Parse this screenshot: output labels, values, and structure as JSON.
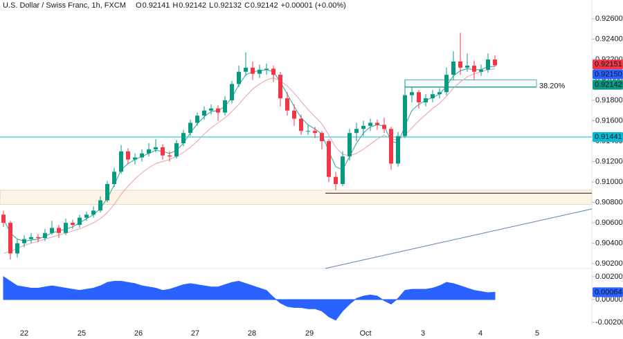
{
  "chart_data": {
    "type": "candlestick",
    "title": "U.S. Dollar / Swiss Franc, 1h, FXCM",
    "ohlc": [
      {
        "label": "O",
        "value": 0.92141
      },
      {
        "label": "H",
        "value": 0.92142
      },
      {
        "label": "L",
        "value": 0.92132
      },
      {
        "label": "C",
        "value": 0.92142
      }
    ],
    "change": "+0.00001 (+0.00%)",
    "up_color": "#089981",
    "down_color": "#f23645",
    "candles": [
      [
        0.9068,
        0.9072,
        0.9056,
        0.906
      ],
      [
        0.906,
        0.9062,
        0.9024,
        0.903
      ],
      [
        0.903,
        0.9044,
        0.9026,
        0.904
      ],
      [
        0.904,
        0.9048,
        0.9036,
        0.9044
      ],
      [
        0.9044,
        0.905,
        0.904,
        0.9046
      ],
      [
        0.9046,
        0.9049,
        0.9041,
        0.9045
      ],
      [
        0.9045,
        0.9054,
        0.9042,
        0.905
      ],
      [
        0.905,
        0.9062,
        0.9048,
        0.9055
      ],
      [
        0.9055,
        0.9058,
        0.9045,
        0.905
      ],
      [
        0.905,
        0.9064,
        0.9048,
        0.906
      ],
      [
        0.906,
        0.9063,
        0.9054,
        0.9058
      ],
      [
        0.9058,
        0.9068,
        0.9055,
        0.9065
      ],
      [
        0.9065,
        0.9071,
        0.9062,
        0.9068
      ],
      [
        0.9068,
        0.9076,
        0.9065,
        0.9072
      ],
      [
        0.9072,
        0.9086,
        0.907,
        0.9082
      ],
      [
        0.9082,
        0.9101,
        0.908,
        0.9098
      ],
      [
        0.9098,
        0.9114,
        0.9095,
        0.911
      ],
      [
        0.911,
        0.9136,
        0.9108,
        0.913
      ],
      [
        0.913,
        0.9133,
        0.9118,
        0.9122
      ],
      [
        0.9122,
        0.9128,
        0.9117,
        0.9124
      ],
      [
        0.9124,
        0.9132,
        0.912,
        0.9128
      ],
      [
        0.9128,
        0.9138,
        0.9125,
        0.9132
      ],
      [
        0.9132,
        0.9142,
        0.9129,
        0.9134
      ],
      [
        0.9134,
        0.9137,
        0.9122,
        0.9126
      ],
      [
        0.9126,
        0.913,
        0.912,
        0.9125
      ],
      [
        0.9125,
        0.9141,
        0.9123,
        0.9138
      ],
      [
        0.9138,
        0.9151,
        0.9135,
        0.9148
      ],
      [
        0.9148,
        0.9161,
        0.9145,
        0.9158
      ],
      [
        0.9158,
        0.9168,
        0.9155,
        0.9165
      ],
      [
        0.9165,
        0.9174,
        0.9161,
        0.917
      ],
      [
        0.917,
        0.9176,
        0.9166,
        0.9172
      ],
      [
        0.9172,
        0.9175,
        0.916,
        0.9168
      ],
      [
        0.9168,
        0.9184,
        0.9165,
        0.918
      ],
      [
        0.918,
        0.9199,
        0.9177,
        0.9196
      ],
      [
        0.9196,
        0.9214,
        0.9193,
        0.9208
      ],
      [
        0.9208,
        0.9227,
        0.9204,
        0.9212
      ],
      [
        0.9212,
        0.9218,
        0.92,
        0.9206
      ],
      [
        0.9206,
        0.9215,
        0.9202,
        0.921
      ],
      [
        0.921,
        0.9216,
        0.9205,
        0.9211
      ],
      [
        0.9211,
        0.9214,
        0.9198,
        0.9205
      ],
      [
        0.9205,
        0.9208,
        0.9174,
        0.9182
      ],
      [
        0.9182,
        0.9188,
        0.9165,
        0.917
      ],
      [
        0.917,
        0.9176,
        0.9155,
        0.9162
      ],
      [
        0.9162,
        0.9166,
        0.9146,
        0.915
      ],
      [
        0.915,
        0.9156,
        0.9146,
        0.915
      ],
      [
        0.915,
        0.9154,
        0.9143,
        0.9148
      ],
      [
        0.9148,
        0.915,
        0.9132,
        0.914
      ],
      [
        0.914,
        0.9142,
        0.91,
        0.9105
      ],
      [
        0.9105,
        0.911,
        0.9092,
        0.9098
      ],
      [
        0.9098,
        0.913,
        0.9096,
        0.9125
      ],
      [
        0.9125,
        0.9152,
        0.9121,
        0.9148
      ],
      [
        0.9148,
        0.9158,
        0.914,
        0.9152
      ],
      [
        0.9152,
        0.916,
        0.9145,
        0.9155
      ],
      [
        0.9155,
        0.9162,
        0.915,
        0.9158
      ],
      [
        0.9158,
        0.9161,
        0.9151,
        0.9156
      ],
      [
        0.9156,
        0.9163,
        0.9148,
        0.9152
      ],
      [
        0.9152,
        0.9154,
        0.9112,
        0.9118
      ],
      [
        0.9118,
        0.9149,
        0.9115,
        0.9145
      ],
      [
        0.9145,
        0.92,
        0.9143,
        0.9185
      ],
      [
        0.9185,
        0.9193,
        0.9178,
        0.9188
      ],
      [
        0.9188,
        0.919,
        0.9172,
        0.9178
      ],
      [
        0.9178,
        0.9186,
        0.9174,
        0.9182
      ],
      [
        0.9182,
        0.919,
        0.9178,
        0.9186
      ],
      [
        0.9186,
        0.9192,
        0.9182,
        0.9188
      ],
      [
        0.9188,
        0.9212,
        0.9185,
        0.9205
      ],
      [
        0.9205,
        0.9228,
        0.92,
        0.9218
      ],
      [
        0.9218,
        0.9246,
        0.9205,
        0.9212
      ],
      [
        0.9212,
        0.9226,
        0.9208,
        0.9214
      ],
      [
        0.9214,
        0.9219,
        0.92,
        0.9208
      ],
      [
        0.9208,
        0.9215,
        0.9204,
        0.921
      ],
      [
        0.921,
        0.9226,
        0.9207,
        0.922
      ],
      [
        0.922,
        0.9224,
        0.92132,
        0.92142
      ]
    ],
    "overlays": [
      {
        "color": "#26a69a",
        "values": [
          0.9064,
          0.905,
          0.9044,
          0.9042,
          0.9043,
          0.9044,
          0.9047,
          0.905,
          0.9052,
          0.9054,
          0.9056,
          0.906,
          0.9064,
          0.9068,
          0.9074,
          0.9084,
          0.9097,
          0.9112,
          0.9118,
          0.9122,
          0.9125,
          0.9128,
          0.9131,
          0.913,
          0.9128,
          0.9131,
          0.9138,
          0.9148,
          0.9157,
          0.9164,
          0.9169,
          0.917,
          0.9174,
          0.9183,
          0.9195,
          0.9205,
          0.9208,
          0.9209,
          0.921,
          0.9208,
          0.9198,
          0.9186,
          0.9174,
          0.9163,
          0.9156,
          0.9152,
          0.9147,
          0.913,
          0.9115,
          0.9112,
          0.9125,
          0.9138,
          0.9148,
          0.9154,
          0.9156,
          0.9155,
          0.914,
          0.9138,
          0.9155,
          0.917,
          0.9176,
          0.918,
          0.9183,
          0.9186,
          0.9194,
          0.9204,
          0.9209,
          0.9211,
          0.921,
          0.921,
          0.9213,
          0.9213
        ]
      },
      {
        "color": "#e8a0a8",
        "values": [
          0.903,
          0.9032,
          0.9035,
          0.9038,
          0.904,
          0.9042,
          0.9044,
          0.9046,
          0.9048,
          0.905,
          0.9052,
          0.9054,
          0.9057,
          0.906,
          0.9064,
          0.907,
          0.9078,
          0.9088,
          0.9096,
          0.9103,
          0.9109,
          0.9114,
          0.9118,
          0.912,
          0.9122,
          0.9125,
          0.9129,
          0.9134,
          0.914,
          0.9147,
          0.9153,
          0.9158,
          0.9163,
          0.9169,
          0.9176,
          0.9184,
          0.9191,
          0.9196,
          0.92,
          0.9202,
          0.9199,
          0.9194,
          0.9187,
          0.9179,
          0.9171,
          0.9164,
          0.9157,
          0.9146,
          0.9134,
          0.9127,
          0.9126,
          0.9128,
          0.9132,
          0.9137,
          0.9142,
          0.9146,
          0.9142,
          0.9141,
          0.9146,
          0.9153,
          0.916,
          0.9166,
          0.9172,
          0.9177,
          0.9184,
          0.9192,
          0.9198,
          0.9203,
          0.9206,
          0.9208,
          0.921,
          0.9211
        ]
      }
    ],
    "ylim": [
      0.90153,
      0.92783
    ],
    "yticks": [
      {
        "value": 0.926,
        "label": "0.92600"
      },
      {
        "value": 0.924,
        "label": "0.92400"
      },
      {
        "value": 0.922,
        "label": "0.92200"
      },
      {
        "value": 0.92,
        "label": "0.92000"
      },
      {
        "value": 0.918,
        "label": "0.91800"
      },
      {
        "value": 0.916,
        "label": "0.91600"
      },
      {
        "value": 0.914,
        "label": "0.91400"
      },
      {
        "value": 0.912,
        "label": "0.91200"
      },
      {
        "value": 0.91,
        "label": "0.91000"
      },
      {
        "value": 0.908,
        "label": "0.90800"
      },
      {
        "value": 0.906,
        "label": "0.90600"
      },
      {
        "value": 0.904,
        "label": "0.90400"
      },
      {
        "value": 0.902,
        "label": "0.90200"
      }
    ],
    "price_labels": [
      {
        "value": 0.92151,
        "label": "0.92151",
        "color": "#f23645"
      },
      {
        "value": 0.9215,
        "label": "0.92150",
        "color": "#2962ff"
      },
      {
        "value": 0.92142,
        "label": "0.92142",
        "color": "#089981"
      }
    ],
    "level_line": {
      "value": 0.91441,
      "label": "0.91441",
      "color": "#00bcd4"
    },
    "support_zone": {
      "values": [
        0.9092,
        0.9078
      ],
      "color": "#fdf3e6"
    },
    "support_line": {
      "value": 0.9089,
      "color": "#131722"
    },
    "trendline": {
      "values": [
        0.90153,
        0.90736
      ],
      "color": "#5b7fbd"
    },
    "fib": {
      "values": [
        0.92,
        0.9193
      ],
      "label": "38.20%",
      "color": "#26a69a"
    },
    "oscillator": {
      "color": "#2962ff",
      "ylim": [
        -0.00224,
        0.0026
      ],
      "yticks": [
        {
          "value": 0.002,
          "label": "0.00200"
        },
        {
          "value": 0,
          "label": "0.00000"
        },
        {
          "value": -0.002,
          "label": "-0.00200"
        }
      ],
      "values": [
        0.002,
        0.0016,
        0.0012,
        0.0011,
        0.001,
        0.001,
        0.0011,
        0.0012,
        0.0011,
        0.001,
        0.0009,
        0.0008,
        0.0009,
        0.001,
        0.0012,
        0.0015,
        0.0016,
        0.0016,
        0.0015,
        0.0014,
        0.0012,
        0.0011,
        0.001,
        0.0008,
        0.0009,
        0.0011,
        0.0013,
        0.0014,
        0.0013,
        0.0012,
        0.0011,
        0.0011,
        0.0013,
        0.0015,
        0.0016,
        0.0014,
        0.0012,
        0.001,
        0.0008,
        0.0002,
        -0.0003,
        -0.0006,
        -0.0007,
        -0.0007,
        -0.0008,
        -0.0008,
        -0.001,
        -0.0015,
        -0.0018,
        -0.001,
        -0.0004,
        0.0001,
        0.0003,
        0.0004,
        0.0003,
        -0.0001,
        -0.0004,
        0.0001,
        0.0008,
        0.0009,
        0.0009,
        0.0009,
        0.001,
        0.0012,
        0.0015,
        0.0014,
        0.0012,
        0.001,
        0.0008,
        0.0007,
        0.0006,
        0.00064
      ]
    },
    "categories": [
      "22",
      "25",
      "26",
      "27",
      "28",
      "29",
      "Oct",
      "3",
      "4",
      "5"
    ]
  }
}
